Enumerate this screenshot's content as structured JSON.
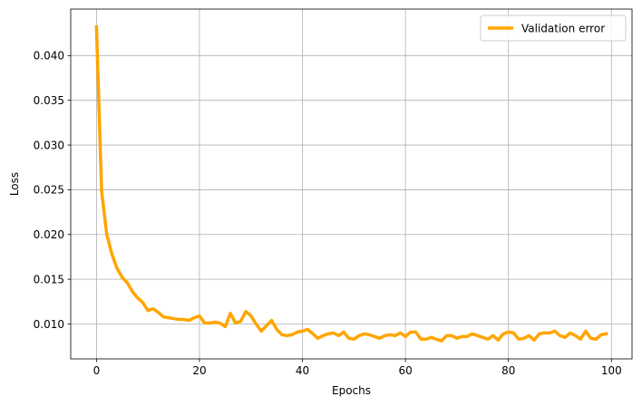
{
  "chart_data": {
    "type": "line",
    "title": "",
    "xlabel": "Epochs",
    "ylabel": "Loss",
    "xlim": [
      -5,
      104
    ],
    "ylim": [
      0.0061,
      0.0452
    ],
    "xticks": [
      0,
      20,
      40,
      60,
      80,
      100
    ],
    "yticks": [
      0.01,
      0.015,
      0.02,
      0.025,
      0.03,
      0.035,
      0.04
    ],
    "xtick_labels": [
      "0",
      "20",
      "40",
      "60",
      "80",
      "100"
    ],
    "ytick_labels": [
      "0.010",
      "0.015",
      "0.020",
      "0.025",
      "0.030",
      "0.035",
      "0.040"
    ],
    "grid": true,
    "legend_position": "top-right",
    "series": [
      {
        "name": "Validation error",
        "color": "#ffa500",
        "x": [
          0,
          1,
          2,
          3,
          4,
          5,
          6,
          7,
          8,
          9,
          10,
          11,
          12,
          13,
          14,
          15,
          16,
          17,
          18,
          19,
          20,
          21,
          22,
          23,
          24,
          25,
          26,
          27,
          28,
          29,
          30,
          31,
          32,
          33,
          34,
          35,
          36,
          37,
          38,
          39,
          40,
          41,
          42,
          43,
          44,
          45,
          46,
          47,
          48,
          49,
          50,
          51,
          52,
          53,
          54,
          55,
          56,
          57,
          58,
          59,
          60,
          61,
          62,
          63,
          64,
          65,
          66,
          67,
          68,
          69,
          70,
          71,
          72,
          73,
          74,
          75,
          76,
          77,
          78,
          79,
          80,
          81,
          82,
          83,
          84,
          85,
          86,
          87,
          88,
          89,
          90,
          91,
          92,
          93,
          94,
          95,
          96,
          97,
          98,
          99
        ],
        "values": [
          0.0432,
          0.0248,
          0.02,
          0.0178,
          0.0162,
          0.0152,
          0.0146,
          0.0136,
          0.0129,
          0.0124,
          0.0115,
          0.0117,
          0.0113,
          0.0108,
          0.0107,
          0.0106,
          0.0105,
          0.0105,
          0.0104,
          0.0107,
          0.0109,
          0.0101,
          0.0101,
          0.0102,
          0.0101,
          0.0097,
          0.0112,
          0.0101,
          0.0103,
          0.0114,
          0.0109,
          0.01,
          0.0092,
          0.0098,
          0.0104,
          0.0094,
          0.0088,
          0.0087,
          0.0088,
          0.0091,
          0.0092,
          0.0094,
          0.0089,
          0.0084,
          0.0087,
          0.0089,
          0.009,
          0.0087,
          0.0091,
          0.0084,
          0.0083,
          0.0087,
          0.0089,
          0.0088,
          0.0086,
          0.0084,
          0.0087,
          0.0088,
          0.0087,
          0.009,
          0.0086,
          0.0091,
          0.0091,
          0.0083,
          0.0083,
          0.0085,
          0.0083,
          0.0081,
          0.0087,
          0.0087,
          0.0084,
          0.0086,
          0.0086,
          0.0089,
          0.0087,
          0.0085,
          0.0083,
          0.0087,
          0.0082,
          0.0089,
          0.0091,
          0.009,
          0.0083,
          0.0084,
          0.0087,
          0.0082,
          0.0089,
          0.009,
          0.009,
          0.0092,
          0.0087,
          0.0085,
          0.009,
          0.0087,
          0.0083,
          0.0092,
          0.0084,
          0.0083,
          0.0088,
          0.0089
        ]
      }
    ]
  }
}
